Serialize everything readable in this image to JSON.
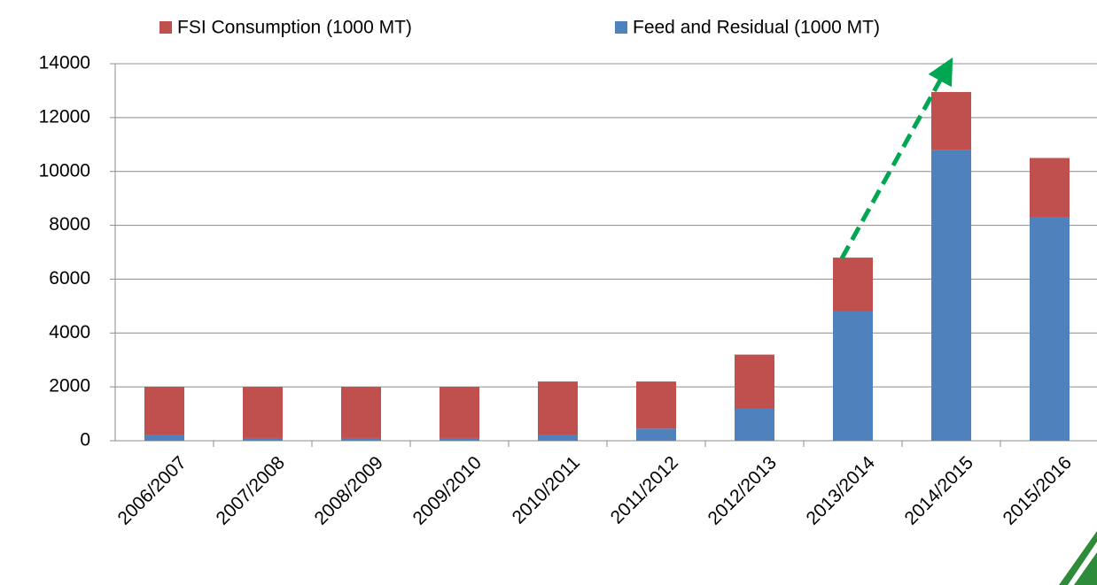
{
  "chart_data": {
    "type": "stacked_bar",
    "categories": [
      "2006/2007",
      "2007/2008",
      "2008/2009",
      "2009/2010",
      "2010/2011",
      "2011/2012",
      "2012/2013",
      "2013/2014",
      "2014/2015",
      "2015/2016"
    ],
    "series": [
      {
        "name": "FSI Consumption (1000 MT)",
        "color": "#c0504d",
        "values": [
          1800,
          1900,
          1900,
          1900,
          2000,
          1750,
          2000,
          2000,
          2150,
          2200
        ]
      },
      {
        "name": "Feed and Residual (1000 MT)",
        "color": "#4f81bd",
        "values": [
          200,
          100,
          100,
          100,
          200,
          450,
          1200,
          4800,
          10800,
          8300
        ]
      }
    ],
    "ylim": [
      0,
      14000
    ],
    "yticks": [
      0,
      2000,
      4000,
      6000,
      8000,
      10000,
      12000,
      14000
    ],
    "grid": true
  }
}
